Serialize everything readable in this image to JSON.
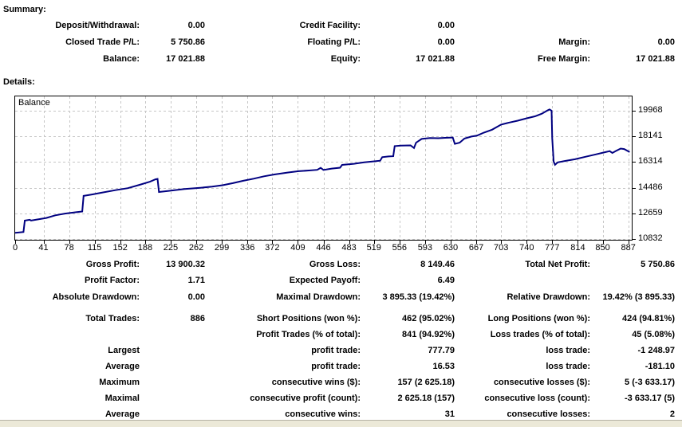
{
  "colors": {
    "balance_line": "#000080",
    "gridline": "#c6c6c6",
    "chart_border": "#000000",
    "window_edge": "#ece9d8"
  },
  "summary": {
    "heading": "Summary:",
    "rows": [
      [
        {
          "label": "Deposit/Withdrawal:",
          "value": "0.00"
        },
        {
          "label": "Credit Facility:",
          "value": "0.00"
        },
        {
          "label": "",
          "value": ""
        }
      ],
      [
        {
          "label": "Closed Trade P/L:",
          "value": "5 750.86"
        },
        {
          "label": "Floating P/L:",
          "value": "0.00"
        },
        {
          "label": "Margin:",
          "value": "0.00"
        }
      ],
      [
        {
          "label": "Balance:",
          "value": "17 021.88"
        },
        {
          "label": "Equity:",
          "value": "17 021.88"
        },
        {
          "label": "Free Margin:",
          "value": "17 021.88"
        }
      ]
    ]
  },
  "details": {
    "heading": "Details:",
    "rows": [
      [
        {
          "label": "Gross Profit:",
          "value": "13 900.32"
        },
        {
          "label": "Gross Loss:",
          "value": "8 149.46"
        },
        {
          "label": "Total Net Profit:",
          "value": "5 750.86"
        }
      ],
      [
        {
          "label": "Profit Factor:",
          "value": "1.71"
        },
        {
          "label": "Expected Payoff:",
          "value": "6.49"
        },
        {
          "label": "",
          "value": ""
        }
      ],
      [
        {
          "label": "Absolute Drawdown:",
          "value": "0.00"
        },
        {
          "label": "Maximal Drawdown:",
          "value": "3 895.33 (19.42%)"
        },
        {
          "label": "Relative Drawdown:",
          "value": "19.42% (3 895.33)"
        }
      ],
      [
        {
          "label": "Total Trades:",
          "value": "886"
        },
        {
          "label": "Short Positions (won %):",
          "value": "462 (95.02%)"
        },
        {
          "label": "Long Positions (won %):",
          "value": "424 (94.81%)"
        }
      ],
      [
        {
          "label": "",
          "value": ""
        },
        {
          "label": "Profit Trades (% of total):",
          "value": "841 (94.92%)"
        },
        {
          "label": "Loss trades (% of total):",
          "value": "45 (5.08%)"
        }
      ],
      [
        {
          "label": "Largest",
          "value": ""
        },
        {
          "label": "profit trade:",
          "value": "777.79"
        },
        {
          "label": "loss trade:",
          "value": "-1 248.97"
        }
      ],
      [
        {
          "label": "Average",
          "value": ""
        },
        {
          "label": "profit trade:",
          "value": "16.53"
        },
        {
          "label": "loss trade:",
          "value": "-181.10"
        }
      ],
      [
        {
          "label": "Maximum",
          "value": ""
        },
        {
          "label": "consecutive wins ($):",
          "value": "157 (2 625.18)"
        },
        {
          "label": "consecutive losses ($):",
          "value": "5 (-3 633.17)"
        }
      ],
      [
        {
          "label": "Maximal",
          "value": ""
        },
        {
          "label": "consecutive profit (count):",
          "value": "2 625.18 (157)"
        },
        {
          "label": "consecutive loss (count):",
          "value": "-3 633.17 (5)"
        }
      ],
      [
        {
          "label": "Average",
          "value": ""
        },
        {
          "label": "consecutive wins:",
          "value": "31"
        },
        {
          "label": "consecutive losses:",
          "value": "2"
        }
      ]
    ]
  },
  "chart_data": {
    "type": "line",
    "title": "Balance",
    "grid": true,
    "x_ticks": [
      0,
      41,
      78,
      115,
      152,
      188,
      225,
      262,
      299,
      336,
      372,
      409,
      446,
      483,
      519,
      556,
      593,
      630,
      667,
      703,
      740,
      777,
      814,
      850,
      887
    ],
    "y_ticks": [
      10832,
      12659,
      14486,
      16314,
      18141,
      19968
    ],
    "xlim": [
      0,
      892
    ],
    "ylim": [
      10775,
      21050
    ],
    "series": [
      {
        "name": "Balance",
        "points": [
          [
            0,
            11271
          ],
          [
            12,
            11330
          ],
          [
            14,
            12140
          ],
          [
            21,
            12200
          ],
          [
            23,
            12150
          ],
          [
            33,
            12230
          ],
          [
            45,
            12330
          ],
          [
            58,
            12520
          ],
          [
            72,
            12640
          ],
          [
            88,
            12740
          ],
          [
            97,
            12790
          ],
          [
            99,
            13900
          ],
          [
            112,
            14010
          ],
          [
            125,
            14130
          ],
          [
            145,
            14310
          ],
          [
            163,
            14450
          ],
          [
            180,
            14690
          ],
          [
            195,
            14910
          ],
          [
            203,
            15080
          ],
          [
            206,
            15110
          ],
          [
            208,
            14180
          ],
          [
            222,
            14260
          ],
          [
            245,
            14390
          ],
          [
            268,
            14480
          ],
          [
            285,
            14560
          ],
          [
            300,
            14660
          ],
          [
            315,
            14810
          ],
          [
            330,
            14980
          ],
          [
            345,
            15130
          ],
          [
            360,
            15300
          ],
          [
            375,
            15430
          ],
          [
            395,
            15570
          ],
          [
            410,
            15660
          ],
          [
            425,
            15710
          ],
          [
            437,
            15760
          ],
          [
            442,
            15900
          ],
          [
            446,
            15750
          ],
          [
            458,
            15850
          ],
          [
            470,
            15910
          ],
          [
            473,
            16110
          ],
          [
            490,
            16190
          ],
          [
            505,
            16290
          ],
          [
            518,
            16360
          ],
          [
            528,
            16410
          ],
          [
            531,
            16660
          ],
          [
            540,
            16710
          ],
          [
            547,
            16730
          ],
          [
            549,
            17450
          ],
          [
            558,
            17480
          ],
          [
            572,
            17500
          ],
          [
            577,
            17310
          ],
          [
            580,
            17690
          ],
          [
            588,
            17960
          ],
          [
            600,
            18030
          ],
          [
            612,
            18010
          ],
          [
            622,
            18040
          ],
          [
            633,
            18060
          ],
          [
            636,
            17610
          ],
          [
            643,
            17690
          ],
          [
            650,
            17990
          ],
          [
            660,
            18130
          ],
          [
            668,
            18190
          ],
          [
            678,
            18410
          ],
          [
            690,
            18620
          ],
          [
            703,
            18980
          ],
          [
            715,
            19130
          ],
          [
            727,
            19260
          ],
          [
            740,
            19430
          ],
          [
            752,
            19570
          ],
          [
            762,
            19760
          ],
          [
            770,
            19990
          ],
          [
            773,
            20060
          ],
          [
            776,
            19970
          ],
          [
            777,
            18000
          ],
          [
            779,
            16350
          ],
          [
            781,
            16120
          ],
          [
            785,
            16290
          ],
          [
            795,
            16390
          ],
          [
            810,
            16510
          ],
          [
            825,
            16690
          ],
          [
            840,
            16860
          ],
          [
            853,
            17010
          ],
          [
            860,
            17090
          ],
          [
            864,
            16960
          ],
          [
            869,
            17100
          ],
          [
            876,
            17270
          ],
          [
            881,
            17240
          ],
          [
            889,
            17022
          ]
        ]
      }
    ]
  }
}
